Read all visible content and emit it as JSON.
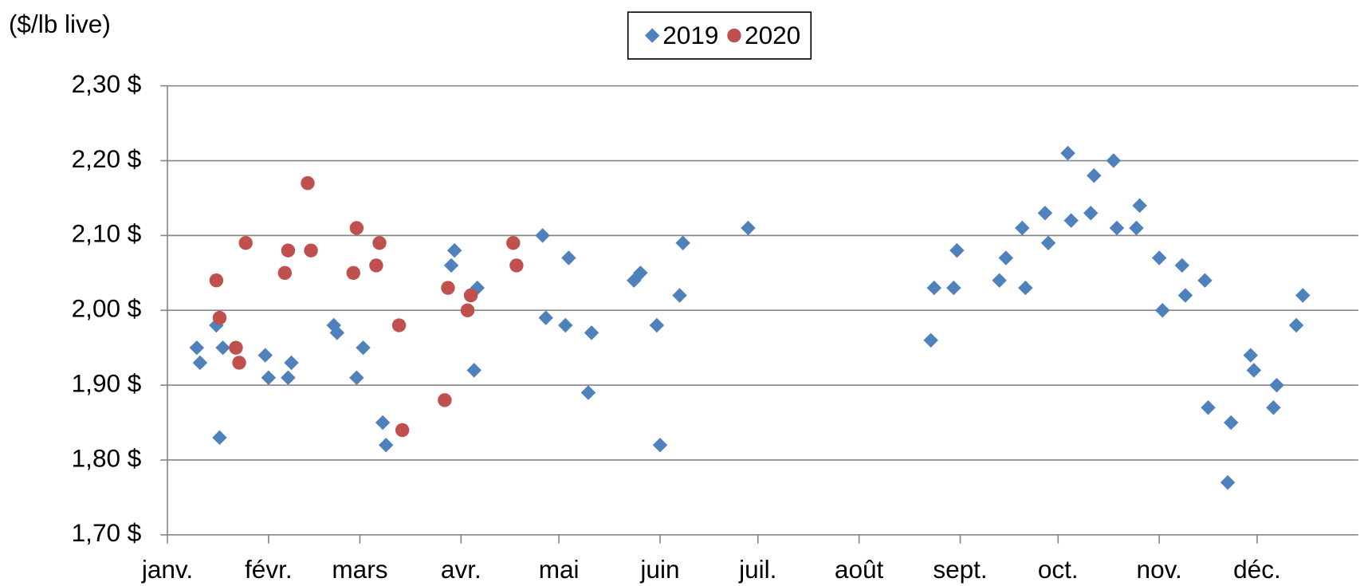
{
  "chart_data": {
    "type": "scatter",
    "y_label": "($/lb live)",
    "xlim": [
      1,
      366
    ],
    "xticks": [
      {
        "value": 1,
        "label": "janv."
      },
      {
        "value": 32,
        "label": "févr."
      },
      {
        "value": 60,
        "label": "mars"
      },
      {
        "value": 91,
        "label": "avr."
      },
      {
        "value": 121,
        "label": "mai"
      },
      {
        "value": 152,
        "label": "juin"
      },
      {
        "value": 182,
        "label": "juil."
      },
      {
        "value": 213,
        "label": "août"
      },
      {
        "value": 244,
        "label": "sept."
      },
      {
        "value": 274,
        "label": "oct."
      },
      {
        "value": 305,
        "label": "nov."
      },
      {
        "value": 335,
        "label": "déc."
      }
    ],
    "ylim": [
      1.7,
      2.3
    ],
    "yticks": [
      {
        "value": 1.7,
        "label": "1,70 $"
      },
      {
        "value": 1.8,
        "label": "1,80 $"
      },
      {
        "value": 1.9,
        "label": "1,90 $"
      },
      {
        "value": 2.0,
        "label": "2,00 $"
      },
      {
        "value": 2.1,
        "label": "2,10 $"
      },
      {
        "value": 2.2,
        "label": "2,20 $"
      },
      {
        "value": 2.3,
        "label": "2,30 $"
      }
    ],
    "grid": true,
    "legend": "top",
    "series": [
      {
        "name": "2019",
        "color": "#4f81bd",
        "marker": "diamond",
        "x": [
          10,
          11,
          16,
          17,
          18,
          31,
          32,
          38,
          39,
          52,
          53,
          59,
          61,
          67,
          68,
          88,
          89,
          95,
          96,
          116,
          117,
          123,
          124,
          130,
          131,
          144,
          146,
          151,
          152,
          158,
          159,
          179,
          235,
          236,
          242,
          243,
          256,
          258,
          263,
          264,
          270,
          271,
          277,
          278,
          284,
          285,
          291,
          292,
          298,
          299,
          305,
          306,
          312,
          313,
          319,
          320,
          326,
          327,
          333,
          334,
          340,
          341,
          347,
          349
        ],
        "values": [
          1.95,
          1.93,
          1.98,
          1.83,
          1.95,
          1.94,
          1.91,
          1.91,
          1.93,
          1.98,
          1.97,
          1.91,
          1.95,
          1.85,
          1.82,
          2.06,
          2.08,
          1.92,
          2.03,
          2.1,
          1.99,
          1.98,
          2.07,
          1.89,
          1.97,
          2.04,
          2.05,
          1.98,
          1.82,
          2.02,
          2.09,
          2.11,
          1.96,
          2.03,
          2.03,
          2.08,
          2.04,
          2.07,
          2.11,
          2.03,
          2.13,
          2.09,
          2.21,
          2.12,
          2.13,
          2.18,
          2.2,
          2.11,
          2.11,
          2.14,
          2.07,
          2.0,
          2.06,
          2.02,
          2.04,
          1.87,
          1.77,
          1.85,
          1.94,
          1.92,
          1.87,
          1.9,
          1.98,
          2.02
        ]
      },
      {
        "name": "2020",
        "color": "#c0504d",
        "marker": "circle",
        "x": [
          16,
          17,
          22,
          23,
          25,
          37,
          38,
          44,
          45,
          58,
          59,
          65,
          66,
          72,
          73,
          86,
          87,
          93,
          94,
          107,
          108
        ],
        "values": [
          2.04,
          1.99,
          1.95,
          1.93,
          2.09,
          2.05,
          2.08,
          2.17,
          2.08,
          2.05,
          2.11,
          2.06,
          2.09,
          1.98,
          1.84,
          1.88,
          2.03,
          2.0,
          2.02,
          2.09,
          2.06
        ]
      }
    ]
  }
}
